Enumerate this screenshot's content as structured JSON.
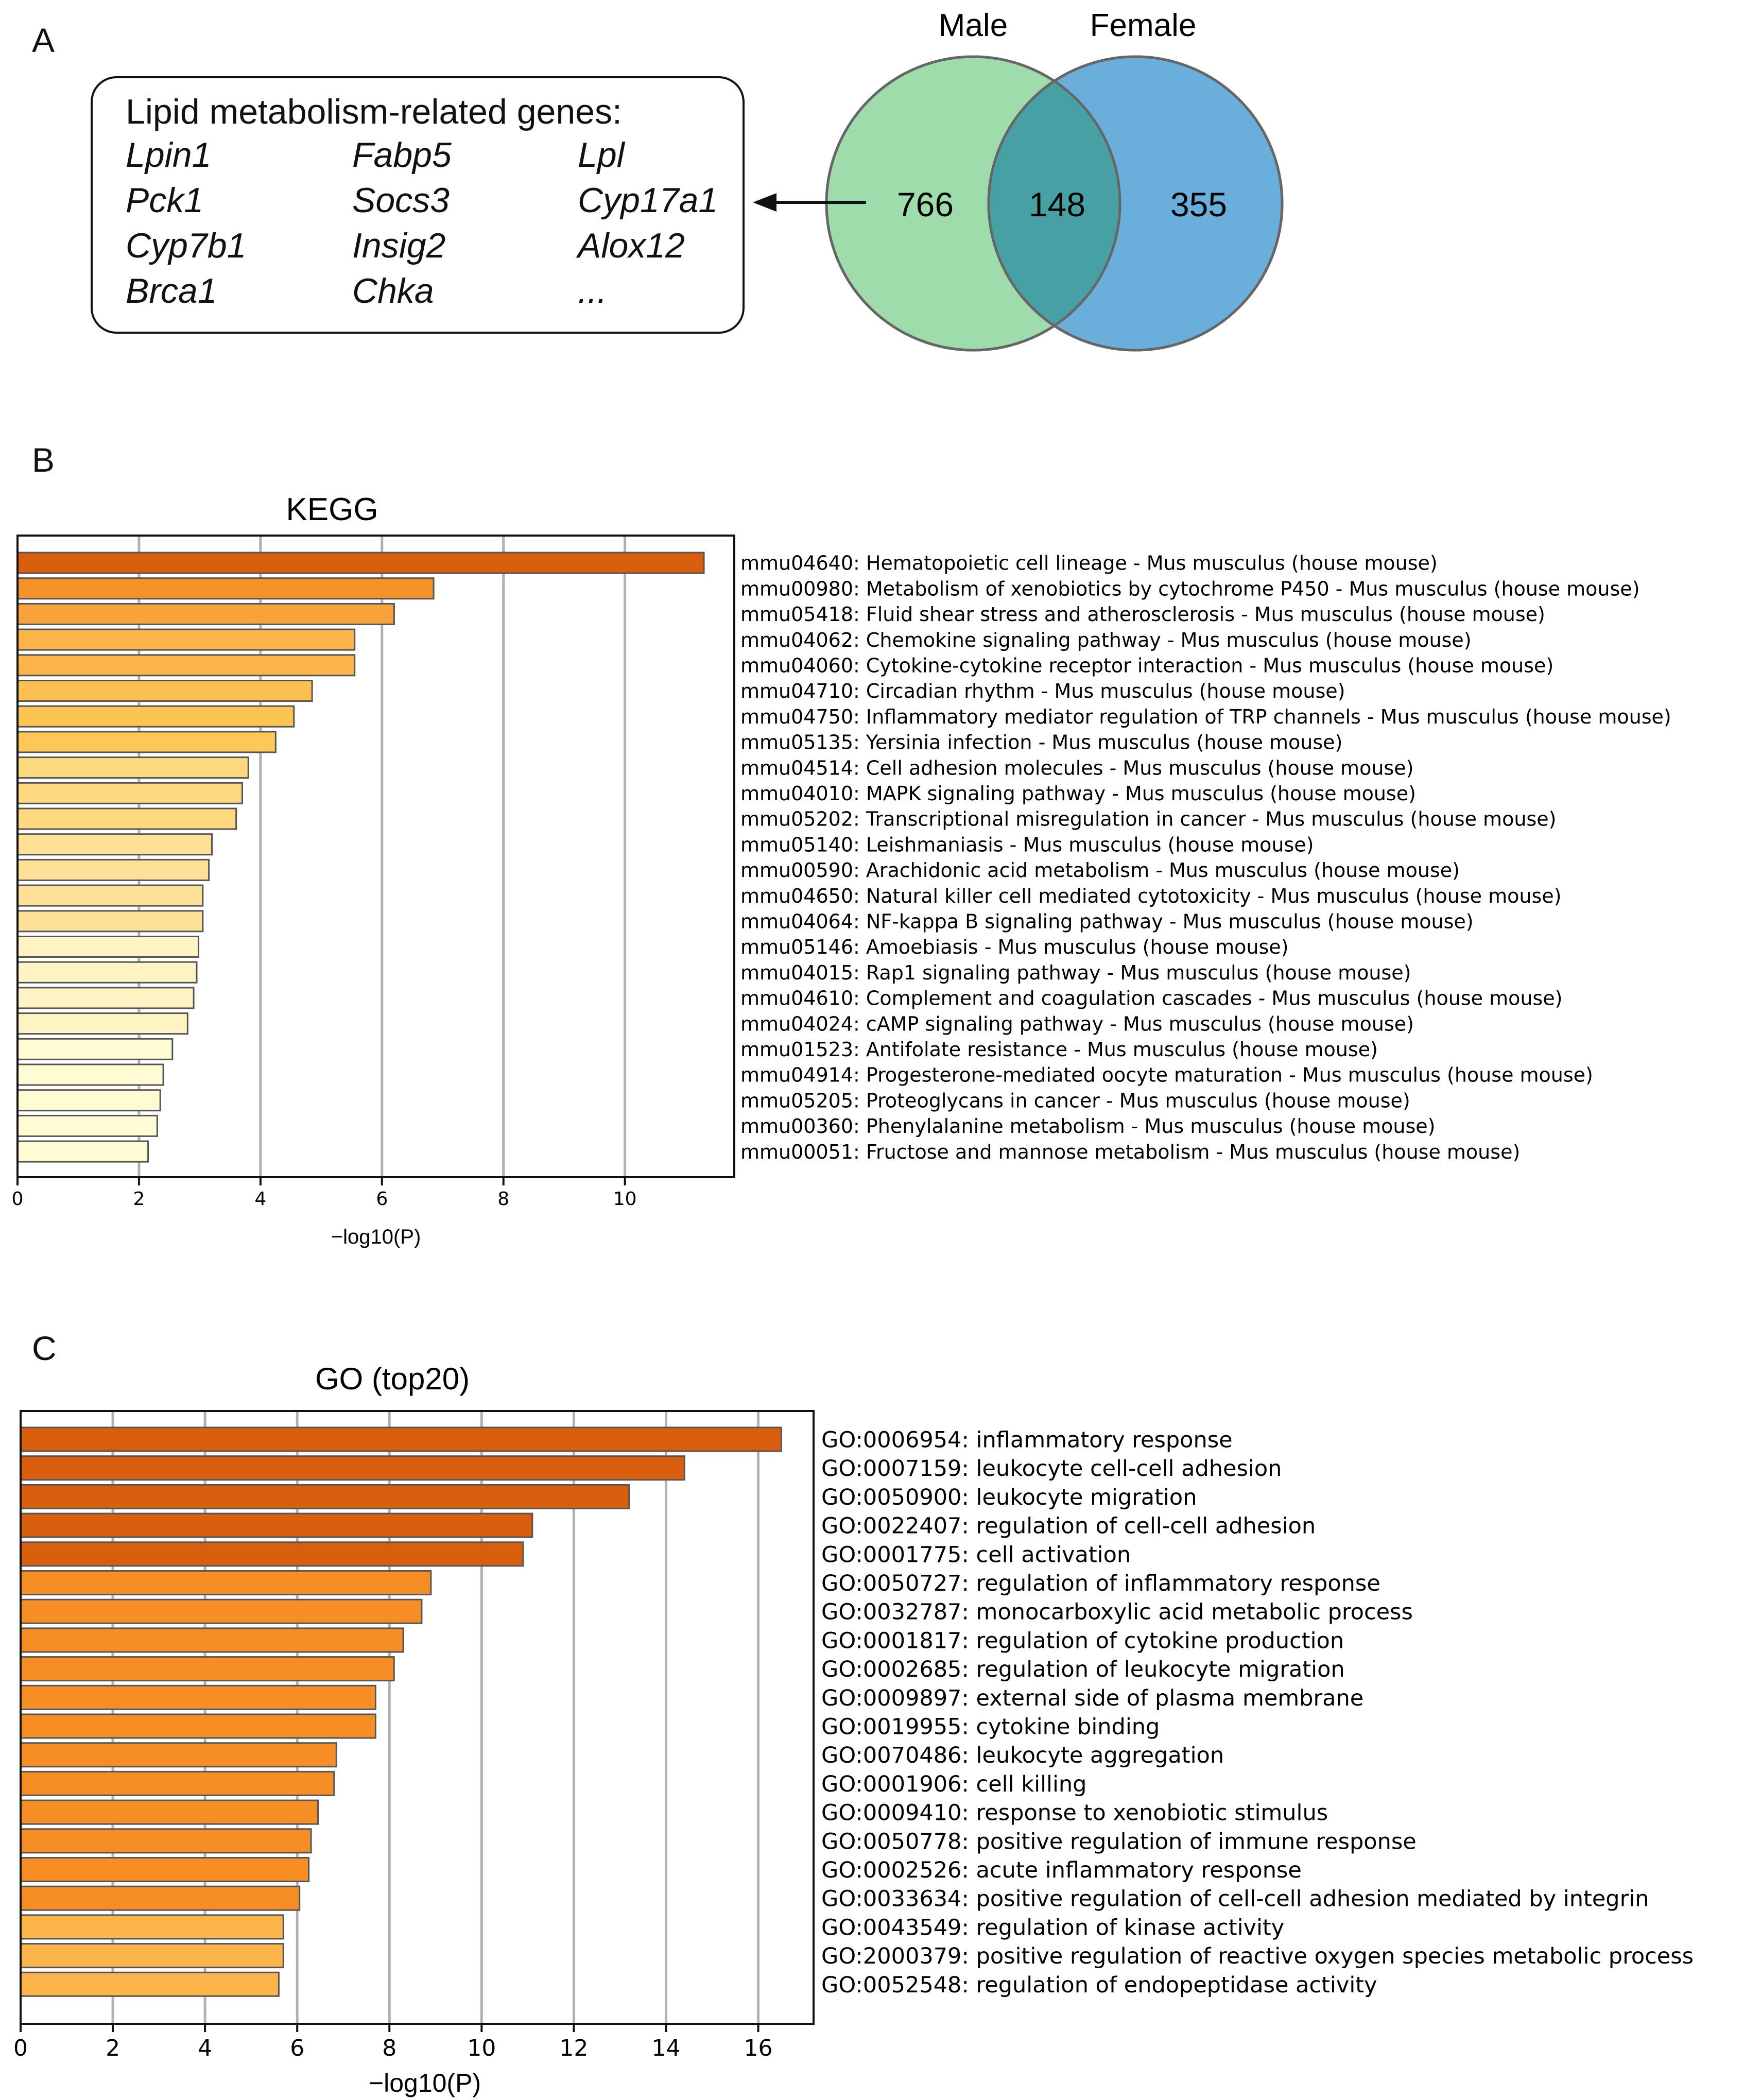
{
  "panels": {
    "a": "A",
    "b": "B",
    "c": "C"
  },
  "venn": {
    "left_label": "Male",
    "right_label": "Female",
    "left_only": "766",
    "overlap": "148",
    "right_only": "355",
    "left_color": "#9fdcab",
    "right_color": "#6aaedb",
    "overlap_color": "#47a0a4"
  },
  "gene_box": {
    "title": "Lipid metabolism-related genes:",
    "genes": [
      "Lpin1",
      "Fabp5",
      "Lpl",
      "Pck1",
      "Socs3",
      "Cyp17a1",
      "Cyp7b1",
      "Insig2",
      "Alox12",
      "Brca1",
      "Chka",
      "..."
    ]
  },
  "chart_data": [
    {
      "type": "bar",
      "orientation": "horizontal",
      "title": "KEGG",
      "xlabel": "−log10(P)",
      "ylabel": "",
      "xlim": [
        0,
        11.8
      ],
      "xticks": [
        0,
        2,
        4,
        6,
        8,
        10
      ],
      "grid": true,
      "categories": [
        "mmu04640: Hematopoietic cell lineage - Mus musculus (house mouse)",
        "mmu00980: Metabolism of xenobiotics by cytochrome P450 - Mus musculus (house mouse)",
        "mmu05418: Fluid shear stress and atherosclerosis - Mus musculus (house mouse)",
        "mmu04062: Chemokine signaling pathway - Mus musculus (house mouse)",
        "mmu04060: Cytokine-cytokine receptor interaction - Mus musculus (house mouse)",
        "mmu04710: Circadian rhythm - Mus musculus (house mouse)",
        "mmu04750: Inflammatory mediator regulation of TRP channels - Mus musculus (house mouse)",
        "mmu05135: Yersinia infection - Mus musculus (house mouse)",
        "mmu04514: Cell adhesion molecules - Mus musculus (house mouse)",
        "mmu04010: MAPK signaling pathway - Mus musculus (house mouse)",
        "mmu05202: Transcriptional misregulation in cancer - Mus musculus (house mouse)",
        "mmu05140: Leishmaniasis - Mus musculus (house mouse)",
        "mmu00590: Arachidonic acid metabolism - Mus musculus (house mouse)",
        "mmu04650: Natural killer cell mediated cytotoxicity - Mus musculus (house mouse)",
        "mmu04064: NF-kappa B signaling pathway - Mus musculus (house mouse)",
        "mmu05146: Amoebiasis - Mus musculus (house mouse)",
        "mmu04015: Rap1 signaling pathway - Mus musculus (house mouse)",
        "mmu04610: Complement and coagulation cascades - Mus musculus (house mouse)",
        "mmu04024: cAMP signaling pathway - Mus musculus (house mouse)",
        "mmu01523: Antifolate resistance - Mus musculus (house mouse)",
        "mmu04914: Progesterone-mediated oocyte maturation - Mus musculus (house mouse)",
        "mmu05205: Proteoglycans in cancer - Mus musculus (house mouse)",
        "mmu00360: Phenylalanine metabolism - Mus musculus (house mouse)",
        "mmu00051: Fructose and mannose metabolism - Mus musculus (house mouse)"
      ],
      "values": [
        11.3,
        6.85,
        6.2,
        5.55,
        5.55,
        4.85,
        4.55,
        4.25,
        3.8,
        3.7,
        3.6,
        3.2,
        3.15,
        3.05,
        3.05,
        2.98,
        2.95,
        2.9,
        2.8,
        2.55,
        2.4,
        2.35,
        2.3,
        2.15
      ],
      "colors": [
        "#d95f0e",
        "#f59128",
        "#f7a23a",
        "#fbb54a",
        "#fbb54a",
        "#fcbf50",
        "#fcc453",
        "#fdc859",
        "#fed980",
        "#fed980",
        "#fed980",
        "#fee196",
        "#fee196",
        "#fee196",
        "#fee196",
        "#fff3c3",
        "#fff3c3",
        "#fff3c3",
        "#fff3c3",
        "#fffbd3",
        "#fffbd3",
        "#fffbd3",
        "#fffbd3",
        "#fffbd3"
      ]
    },
    {
      "type": "bar",
      "orientation": "horizontal",
      "title": "GO (top20)",
      "xlabel": "−log10(P)",
      "ylabel": "",
      "xlim": [
        0,
        17.2
      ],
      "xticks": [
        0,
        2,
        4,
        6,
        8,
        10,
        12,
        14,
        16
      ],
      "grid": true,
      "categories": [
        "GO:0006954: inflammatory response",
        "GO:0007159: leukocyte cell-cell adhesion",
        "GO:0050900: leukocyte migration",
        "GO:0022407: regulation of cell-cell adhesion",
        "GO:0001775: cell activation",
        "GO:0050727: regulation of inflammatory response",
        "GO:0032787: monocarboxylic acid metabolic process",
        "GO:0001817: regulation of cytokine production",
        "GO:0002685: regulation of leukocyte migration",
        "GO:0009897: external side of plasma membrane",
        "GO:0019955: cytokine binding",
        "GO:0070486: leukocyte aggregation",
        "GO:0001906: cell killing",
        "GO:0009410: response to xenobiotic stimulus",
        "GO:0050778: positive regulation of immune response",
        "GO:0002526: acute inflammatory response",
        "GO:0033634: positive regulation of cell-cell adhesion mediated by integrin",
        "GO:0043549: regulation of kinase activity",
        "GO:2000379: positive regulation of reactive oxygen species metabolic process",
        "GO:0052548: regulation of endopeptidase activity"
      ],
      "values": [
        16.5,
        14.4,
        13.2,
        11.1,
        10.9,
        8.9,
        8.7,
        8.3,
        8.1,
        7.7,
        7.7,
        6.85,
        6.8,
        6.45,
        6.3,
        6.25,
        6.05,
        5.7,
        5.7,
        5.6
      ],
      "colors": [
        "#d95f0e",
        "#d95f0e",
        "#d95f0e",
        "#d95f0e",
        "#d95f0e",
        "#f68d25",
        "#f68d25",
        "#f68d25",
        "#f68d25",
        "#f68d25",
        "#f68d25",
        "#f68d25",
        "#f68d25",
        "#f68d25",
        "#f68d25",
        "#f68d25",
        "#f68d25",
        "#fbb54a",
        "#fbb54a",
        "#fbb54a"
      ]
    }
  ]
}
